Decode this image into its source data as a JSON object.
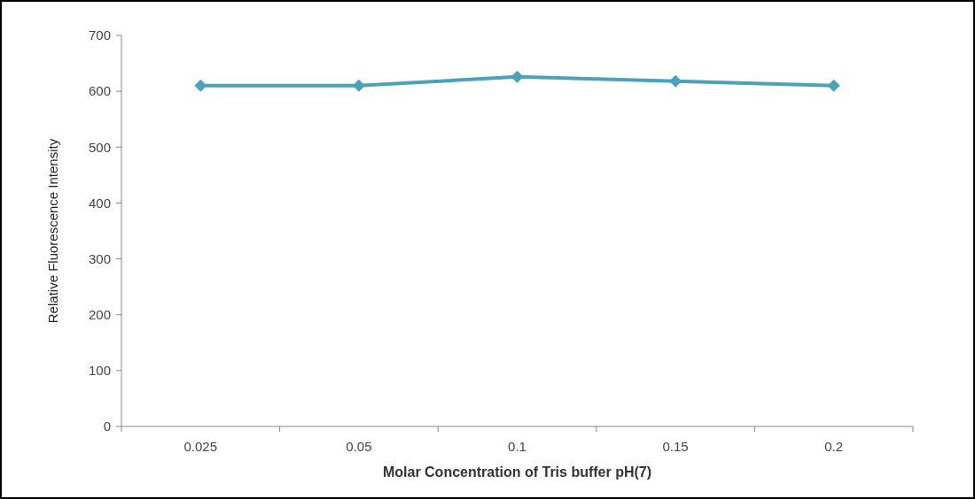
{
  "chart_data": {
    "type": "line",
    "xlabel": "Molar Concentration of Tris buffer pH(7)",
    "ylabel": "Relative Fluorescence Intensity",
    "categories": [
      "0.025",
      "0.05",
      "0.1",
      "0.15",
      "0.2"
    ],
    "series": [
      {
        "color": "#4aa3b8",
        "values": [
          610,
          610,
          626,
          618,
          610
        ]
      }
    ],
    "ylim": [
      0,
      700
    ],
    "yticks": [
      0,
      100,
      200,
      300,
      400,
      500,
      600,
      700
    ],
    "grid": false,
    "marker": "diamond",
    "line_style": "solid"
  }
}
